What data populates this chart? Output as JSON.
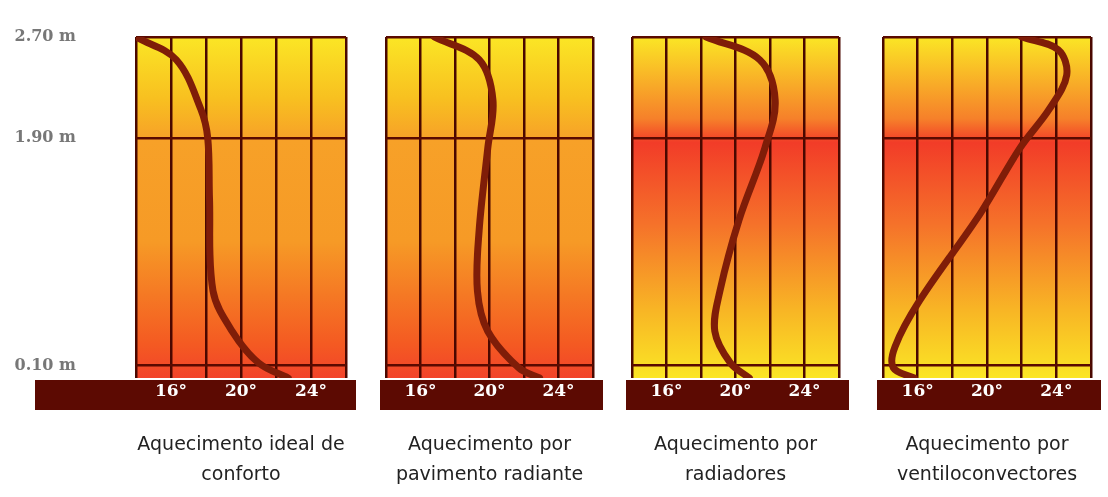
{
  "chart_data": [
    {
      "type": "line",
      "xlabel": "Aquecimento ideal de conforto",
      "xlim": [
        14,
        26
      ],
      "xticks": [
        {
          "value": 14,
          "label": null
        },
        {
          "value": 16,
          "label": "16°"
        },
        {
          "value": 18,
          "label": null
        },
        {
          "value": 20,
          "label": "20°"
        },
        {
          "value": 22,
          "label": null
        },
        {
          "value": 24,
          "label": "24°"
        },
        {
          "value": 26,
          "label": null
        }
      ],
      "ylim": [
        0,
        2.7
      ],
      "yticks": [
        {
          "value": 0.1,
          "label": "0.10 m"
        },
        {
          "value": 1.9,
          "label": "1.90 m"
        },
        {
          "value": 2.7,
          "label": "2.70 m"
        }
      ],
      "grid": true,
      "series": [
        {
          "color": "#7f1d08",
          "x": [
            14.0,
            16.3,
            17.7,
            18.1,
            18.2,
            18.4,
            19.5,
            21.0,
            22.7
          ],
          "values": [
            2.7,
            2.52,
            2.13,
            1.9,
            1.42,
            0.69,
            0.37,
            0.12,
            0
          ]
        }
      ]
    },
    {
      "type": "line",
      "xlabel": "Aquecimento por pavimento radiante",
      "xlim": [
        14,
        26
      ],
      "xticks": [
        {
          "value": 14,
          "label": null
        },
        {
          "value": 16,
          "label": "16°"
        },
        {
          "value": 18,
          "label": null
        },
        {
          "value": 20,
          "label": "20°"
        },
        {
          "value": 22,
          "label": null
        },
        {
          "value": 24,
          "label": "24°"
        },
        {
          "value": 26,
          "label": null
        }
      ],
      "ylim": [
        0,
        2.7
      ],
      "yticks": [
        {
          "value": 0.1,
          "label": null
        },
        {
          "value": 1.9,
          "label": null
        },
        {
          "value": 2.7,
          "label": null
        }
      ],
      "grid": true,
      "tick_labels": "x",
      "series": [
        {
          "color": "#7f1d08",
          "x": [
            16.8,
            19.4,
            20.2,
            19.9,
            19.4,
            19.3,
            19.9,
            21.7,
            22.9
          ],
          "values": [
            2.7,
            2.52,
            2.2,
            1.82,
            1.17,
            0.69,
            0.37,
            0.08,
            0
          ]
        }
      ]
    },
    {
      "type": "line",
      "xlabel": "Aquecimento por radiadores",
      "xlim": [
        14,
        26
      ],
      "xticks": [
        {
          "value": 14,
          "label": null
        },
        {
          "value": 16,
          "label": "16°"
        },
        {
          "value": 18,
          "label": null
        },
        {
          "value": 20,
          "label": "20°"
        },
        {
          "value": 22,
          "label": null
        },
        {
          "value": 24,
          "label": "24°"
        },
        {
          "value": 26,
          "label": null
        }
      ],
      "ylim": [
        0,
        2.7
      ],
      "yticks": [
        {
          "value": 0.1,
          "label": null
        },
        {
          "value": 1.9,
          "label": null
        },
        {
          "value": 2.7,
          "label": null
        }
      ],
      "grid": true,
      "tick_labels": "x",
      "series": [
        {
          "color": "#7f1d08",
          "x": [
            18.3,
            21.4,
            22.3,
            21.7,
            20.2,
            19.1,
            18.8,
            19.7,
            20.8
          ],
          "values": [
            2.7,
            2.52,
            2.2,
            1.82,
            1.25,
            0.69,
            0.37,
            0.12,
            0
          ]
        }
      ]
    },
    {
      "type": "line",
      "xlabel": "Aquecimento por ventiloconvectores",
      "xlim": [
        14,
        26
      ],
      "xticks": [
        {
          "value": 14,
          "label": null
        },
        {
          "value": 16,
          "label": "16°"
        },
        {
          "value": 18,
          "label": null
        },
        {
          "value": 20,
          "label": "20°"
        },
        {
          "value": 22,
          "label": null
        },
        {
          "value": 24,
          "label": "24°"
        },
        {
          "value": 26,
          "label": null
        }
      ],
      "ylim": [
        0,
        2.7
      ],
      "yticks": [
        {
          "value": 0.1,
          "label": null
        },
        {
          "value": 1.9,
          "label": null
        },
        {
          "value": 2.7,
          "label": null
        }
      ],
      "grid": true,
      "tick_labels": "x",
      "series": [
        {
          "color": "#7f1d08",
          "x": [
            22.0,
            24.1,
            24.6,
            23.6,
            21.9,
            19.6,
            16.1,
            14.7,
            14.6,
            15.8
          ],
          "values": [
            2.7,
            2.6,
            2.4,
            2.13,
            1.82,
            1.3,
            0.61,
            0.25,
            0.08,
            0
          ]
        }
      ]
    }
  ]
}
